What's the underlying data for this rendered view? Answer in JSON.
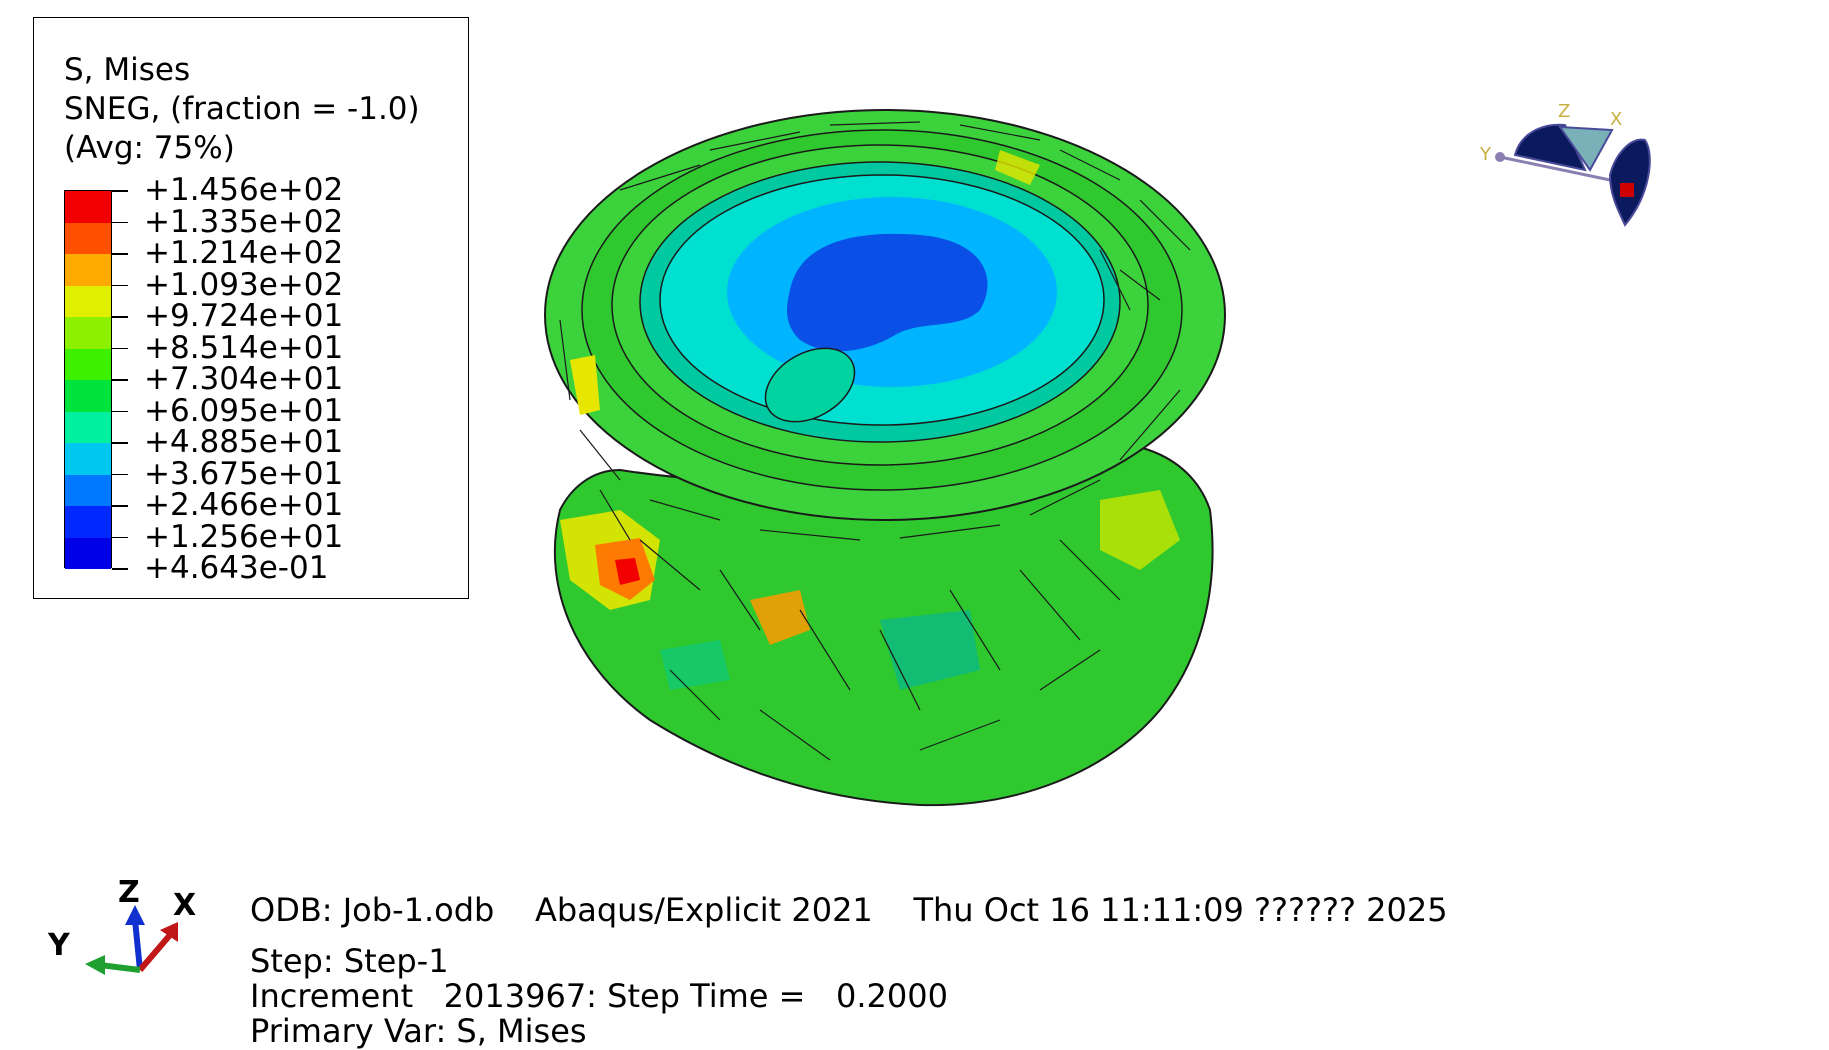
{
  "legend": {
    "title": "S, Mises",
    "subtitle": "SNEG, (fraction = -1.0)",
    "averaging": "(Avg: 75%)",
    "levels": [
      "+1.456e+02",
      "+1.335e+02",
      "+1.214e+02",
      "+1.093e+02",
      "+9.724e+01",
      "+8.514e+01",
      "+7.304e+01",
      "+6.095e+01",
      "+4.885e+01",
      "+3.675e+01",
      "+2.466e+01",
      "+1.256e+01",
      "+4.643e-01"
    ],
    "band_colors": [
      "#f20000",
      "#ff5000",
      "#ffaa00",
      "#e1f000",
      "#8cf000",
      "#3cf000",
      "#00e23c",
      "#00f0a0",
      "#00c8f0",
      "#0078ff",
      "#0028ff",
      "#0000e6"
    ]
  },
  "triad": {
    "z": "Z",
    "x": "X",
    "y": "Y"
  },
  "view_cube": {
    "z": "Z",
    "x": "X",
    "y": "Y"
  },
  "info": {
    "odb": "ODB: Job-1.odb    Abaqus/Explicit 2021    Thu Oct 16 11:11:09 ?????? 2025",
    "step": "Step: Step-1",
    "increment": "Increment   2013967: Step Time =   0.2000",
    "primary_var": "Primary Var: S, Mises"
  },
  "colors": {
    "background": "#ffffff",
    "mesh_edge": "#1a1a1a",
    "view_cube_navy": "#0a1a5c",
    "view_cube_red": "#d00000"
  }
}
